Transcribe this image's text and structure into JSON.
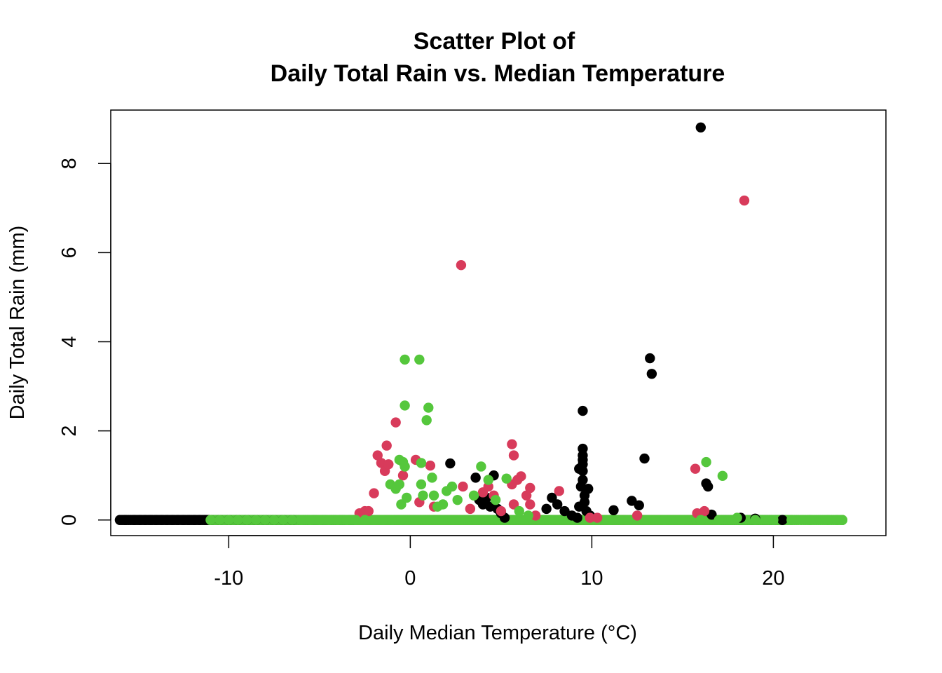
{
  "chart_data": {
    "type": "scatter",
    "title_line1": "Scatter Plot of",
    "title_line2": "Daily Total Rain vs. Median Temperature",
    "xlabel": "Daily Median Temperature (°C)",
    "ylabel": "Daily Total Rain (mm)",
    "xlim": [
      -16.5,
      26.2
    ],
    "ylim": [
      -0.35,
      9.2
    ],
    "x_ticks": [
      -10,
      0,
      10,
      20
    ],
    "y_ticks": [
      0,
      2,
      4,
      6,
      8
    ],
    "x_tick_labels": [
      "-10",
      "0",
      "10",
      "20"
    ],
    "y_tick_labels": [
      "0",
      "2",
      "4",
      "6",
      "8"
    ],
    "grid": false,
    "legend": "none",
    "series": [
      {
        "color": "#000000",
        "points": [
          [
            -15.7,
            0
          ],
          [
            -15.2,
            0
          ],
          [
            -14.9,
            0
          ],
          [
            -14.6,
            0
          ],
          [
            -14.3,
            0
          ],
          [
            -14.0,
            0
          ],
          [
            -13.7,
            0
          ],
          [
            -13.4,
            0
          ],
          [
            -13.1,
            0
          ],
          [
            -12.8,
            0
          ],
          [
            -12.5,
            0
          ],
          [
            -12.2,
            0
          ],
          [
            -11.9,
            0
          ],
          [
            -11.6,
            0
          ],
          [
            -11.3,
            0
          ],
          [
            -11.0,
            0
          ],
          [
            -10.5,
            0
          ],
          [
            -10.0,
            0
          ],
          [
            -9.5,
            0
          ],
          [
            -9.0,
            0
          ],
          [
            -8.5,
            0
          ],
          [
            -8.0,
            0
          ],
          [
            -7.5,
            0
          ],
          [
            -7.0,
            0
          ],
          [
            -6.5,
            0
          ],
          [
            2.2,
            1.27
          ],
          [
            3.6,
            0.95
          ],
          [
            3.8,
            0.45
          ],
          [
            4.0,
            0.35
          ],
          [
            4.2,
            0.5
          ],
          [
            4.4,
            0.3
          ],
          [
            4.6,
            1.0
          ],
          [
            4.8,
            0.25
          ],
          [
            5.0,
            0.15
          ],
          [
            5.2,
            0.05
          ],
          [
            7.5,
            0.25
          ],
          [
            7.8,
            0.5
          ],
          [
            8.1,
            0.35
          ],
          [
            8.5,
            0.2
          ],
          [
            8.9,
            0.1
          ],
          [
            9.3,
            0.3
          ],
          [
            9.3,
            1.15
          ],
          [
            9.4,
            0.75
          ],
          [
            9.5,
            1.6
          ],
          [
            9.5,
            1.45
          ],
          [
            9.5,
            1.35
          ],
          [
            9.5,
            1.25
          ],
          [
            9.5,
            1.1
          ],
          [
            9.5,
            0.9
          ],
          [
            9.6,
            0.55
          ],
          [
            9.6,
            0.4
          ],
          [
            9.7,
            0.2
          ],
          [
            9.8,
            0.7
          ],
          [
            9.9,
            0.1
          ],
          [
            9.2,
            0.05
          ],
          [
            9.5,
            2.45
          ],
          [
            11.2,
            0.22
          ],
          [
            12.2,
            0.43
          ],
          [
            12.6,
            0.33
          ],
          [
            12.9,
            1.38
          ],
          [
            13.2,
            3.63
          ],
          [
            13.3,
            3.28
          ],
          [
            16.0,
            8.81
          ],
          [
            16.3,
            0.82
          ],
          [
            16.4,
            0.75
          ],
          [
            16.6,
            0.12
          ],
          [
            18.2,
            0.05
          ],
          [
            19.0,
            0.03
          ],
          [
            20.5,
            0
          ]
        ]
      },
      {
        "color": "#d83b5b",
        "points": [
          [
            -2.8,
            0.15
          ],
          [
            -2.5,
            0.2
          ],
          [
            -2.3,
            0.2
          ],
          [
            -2.0,
            0.6
          ],
          [
            -1.8,
            1.45
          ],
          [
            -1.6,
            1.28
          ],
          [
            -1.4,
            1.1
          ],
          [
            -1.3,
            1.67
          ],
          [
            -1.2,
            1.25
          ],
          [
            -0.8,
            2.19
          ],
          [
            -0.4,
            1.0
          ],
          [
            0.3,
            1.35
          ],
          [
            0.5,
            0.4
          ],
          [
            1.1,
            1.22
          ],
          [
            1.3,
            0.3
          ],
          [
            2.8,
            5.72
          ],
          [
            2.9,
            0.75
          ],
          [
            3.3,
            0.25
          ],
          [
            4.0,
            0.62
          ],
          [
            4.3,
            0.75
          ],
          [
            4.6,
            0.55
          ],
          [
            5.0,
            0.2
          ],
          [
            5.6,
            1.7
          ],
          [
            5.7,
            1.45
          ],
          [
            5.6,
            0.8
          ],
          [
            5.7,
            0.35
          ],
          [
            5.9,
            0.9
          ],
          [
            6.1,
            0.98
          ],
          [
            6.4,
            0.55
          ],
          [
            6.6,
            0.72
          ],
          [
            6.6,
            0.35
          ],
          [
            6.9,
            0.1
          ],
          [
            8.2,
            0.65
          ],
          [
            9.9,
            0.05
          ],
          [
            10.3,
            0.05
          ],
          [
            12.5,
            0.1
          ],
          [
            15.7,
            1.15
          ],
          [
            15.8,
            0.15
          ],
          [
            16.2,
            0.2
          ],
          [
            18.4,
            7.17
          ]
        ]
      },
      {
        "color": "#55c73c",
        "points": [
          [
            -11.0,
            0
          ],
          [
            -10.5,
            0
          ],
          [
            -10.0,
            0
          ],
          [
            -9.5,
            0
          ],
          [
            -9.0,
            0
          ],
          [
            -8.5,
            0
          ],
          [
            -8.0,
            0
          ],
          [
            -7.5,
            0
          ],
          [
            -7.0,
            0
          ],
          [
            -6.5,
            0
          ],
          [
            -6.0,
            0
          ],
          [
            -5.5,
            0
          ],
          [
            -5.0,
            0
          ],
          [
            -4.5,
            0
          ],
          [
            -4.0,
            0
          ],
          [
            -3.5,
            0
          ],
          [
            -3.0,
            0
          ],
          [
            -2.5,
            0
          ],
          [
            -2.0,
            0
          ],
          [
            -1.5,
            0
          ],
          [
            -1.0,
            0
          ],
          [
            -0.5,
            0
          ],
          [
            -0.3,
            3.6
          ],
          [
            0.5,
            3.6
          ],
          [
            -0.3,
            2.57
          ],
          [
            1.0,
            2.52
          ],
          [
            0.9,
            2.24
          ],
          [
            -1.1,
            0.8
          ],
          [
            -0.8,
            0.7
          ],
          [
            -0.6,
            0.8
          ],
          [
            -0.6,
            1.35
          ],
          [
            -0.4,
            1.3
          ],
          [
            -0.3,
            1.2
          ],
          [
            -0.5,
            0.35
          ],
          [
            -0.2,
            0.5
          ],
          [
            0.6,
            0.8
          ],
          [
            0.6,
            1.28
          ],
          [
            0.7,
            0.55
          ],
          [
            1.2,
            0.95
          ],
          [
            1.3,
            0.55
          ],
          [
            1.5,
            0.3
          ],
          [
            1.8,
            0.35
          ],
          [
            2.0,
            0.65
          ],
          [
            2.3,
            0.75
          ],
          [
            2.6,
            0.45
          ],
          [
            3.5,
            0.55
          ],
          [
            3.9,
            1.2
          ],
          [
            4.3,
            0.9
          ],
          [
            4.7,
            0.45
          ],
          [
            5.3,
            0.93
          ],
          [
            6.0,
            0.2
          ],
          [
            6.5,
            0.1
          ],
          [
            16.3,
            1.3
          ],
          [
            17.2,
            0.99
          ],
          [
            11.0,
            0
          ],
          [
            12.0,
            0
          ],
          [
            13.0,
            0
          ],
          [
            14.0,
            0
          ],
          [
            15.0,
            0
          ],
          [
            16.0,
            0
          ],
          [
            17.0,
            0
          ],
          [
            18.0,
            0.05
          ],
          [
            19.0,
            0
          ],
          [
            20.0,
            0
          ],
          [
            21.0,
            0
          ],
          [
            22.0,
            0
          ],
          [
            23.0,
            0
          ],
          [
            23.5,
            0
          ],
          [
            23.8,
            0
          ]
        ]
      }
    ],
    "dense_baseline_ranges": [
      {
        "color": "#000000",
        "x_from": -16.0,
        "x_to": 20.5,
        "y": 0
      },
      {
        "color": "#d83b5b",
        "x_from": -3.0,
        "x_to": 17.0,
        "y": 0
      },
      {
        "color": "#55c73c",
        "x_from": -11.0,
        "x_to": 23.8,
        "y": 0
      }
    ]
  }
}
